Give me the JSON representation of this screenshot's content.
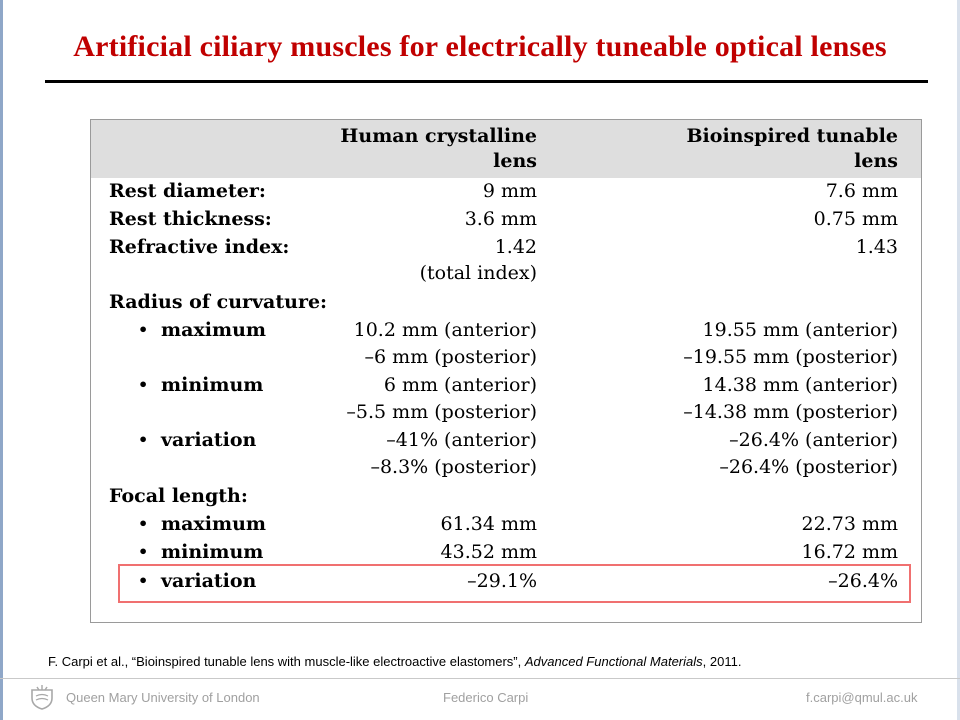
{
  "title": "Artificial ciliary muscles for electrically tuneable optical lenses",
  "table": {
    "headers": {
      "human_line1": "Human crystalline",
      "human_line2": "lens",
      "bio_line1": "Bioinspired tunable",
      "bio_line2": "lens"
    },
    "rows": [
      {
        "label": "Rest diameter:",
        "human": "9 mm",
        "bio": "7.6 mm"
      },
      {
        "label": "Rest thickness:",
        "human": "3.6 mm",
        "bio": "0.75 mm"
      },
      {
        "label": "Refractive index:",
        "human": "1.42",
        "bio": "1.43"
      },
      {
        "label": "",
        "human": "(total index)",
        "bio": ""
      },
      {
        "label": "Radius of curvature:",
        "human": "",
        "bio": ""
      },
      {
        "label": "maximum",
        "human": "10.2 mm (anterior)",
        "bio": "19.55 mm (anterior)"
      },
      {
        "label": "",
        "human": "–6 mm (posterior)",
        "bio": "–19.55 mm (posterior)"
      },
      {
        "label": "minimum",
        "human": "6 mm (anterior)",
        "bio": "14.38 mm (anterior)"
      },
      {
        "label": "",
        "human": "–5.5 mm (posterior)",
        "bio": "–14.38 mm (posterior)"
      },
      {
        "label": "variation",
        "human": "–41% (anterior)",
        "bio": "–26.4% (anterior)"
      },
      {
        "label": "",
        "human": "–8.3% (posterior)",
        "bio": "–26.4% (posterior)"
      },
      {
        "label": "Focal length:",
        "human": "",
        "bio": ""
      },
      {
        "label": "maximum",
        "human": "61.34 mm",
        "bio": "22.73 mm"
      },
      {
        "label": "minimum",
        "human": "43.52 mm",
        "bio": "16.72 mm"
      },
      {
        "label": "variation",
        "human": "–29.1%",
        "bio": "–26.4%"
      }
    ],
    "bullet": "•"
  },
  "citation": {
    "prefix": "F. Carpi et al., “Bioinspired tunable lens with muscle-like electroactive elastomers”, ",
    "journal": "Advanced Functional Materials",
    "suffix": ", 2011."
  },
  "footer": {
    "institution": "Queen Mary University of London",
    "author": "Federico Carpi",
    "email": "f.carpi@qmul.ac.uk"
  }
}
